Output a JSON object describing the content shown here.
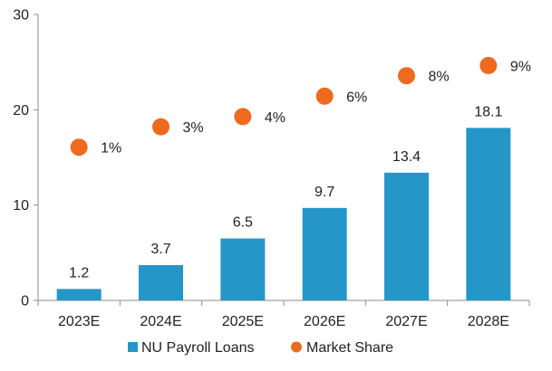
{
  "chart_data": {
    "type": "bar",
    "categories": [
      "2023E",
      "2024E",
      "2025E",
      "2026E",
      "2027E",
      "2028E"
    ],
    "series": [
      {
        "name": "NU Payroll Loans",
        "type": "bar",
        "axis": "left",
        "values": [
          1.2,
          3.7,
          6.5,
          9.7,
          13.4,
          18.1
        ],
        "labels": [
          "1.2",
          "3.7",
          "6.5",
          "9.7",
          "13.4",
          "18.1"
        ],
        "color": "#2596c8"
      },
      {
        "name": "Market Share",
        "type": "scatter",
        "axis": "right",
        "values": [
          1,
          3,
          4,
          6,
          8,
          9
        ],
        "labels": [
          "1%",
          "3%",
          "4%",
          "6%",
          "8%",
          "9%"
        ],
        "color": "#ee6a1f"
      }
    ],
    "y_ticks": [
      "0",
      "10",
      "20",
      "30"
    ],
    "ylim": [
      0,
      30
    ],
    "y2lim": [
      -14,
      14
    ],
    "grid": false,
    "legend_position": "bottom"
  }
}
